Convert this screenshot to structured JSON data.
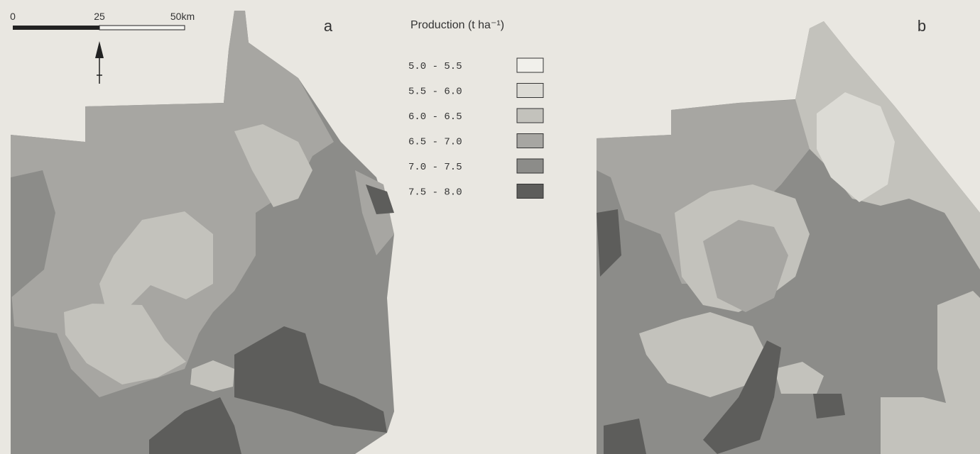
{
  "scale_bar": {
    "labels": [
      "0",
      "25",
      "50km"
    ]
  },
  "map_a": {
    "label": "a"
  },
  "map_b": {
    "label": "b"
  },
  "legend": {
    "title": "Production (t ha⁻¹)",
    "items": [
      {
        "label": "5.0 - 5.5",
        "color": "#f1f0eb"
      },
      {
        "label": "5.5 - 6.0",
        "color": "#dcdbd5"
      },
      {
        "label": "6.0 - 6.5",
        "color": "#c3c2bc"
      },
      {
        "label": "6.5 - 7.0",
        "color": "#a7a6a2"
      },
      {
        "label": "7.0 - 7.5",
        "color": "#8c8c89"
      },
      {
        "label": "7.5 - 8.0",
        "color": "#5d5d5b"
      }
    ]
  }
}
